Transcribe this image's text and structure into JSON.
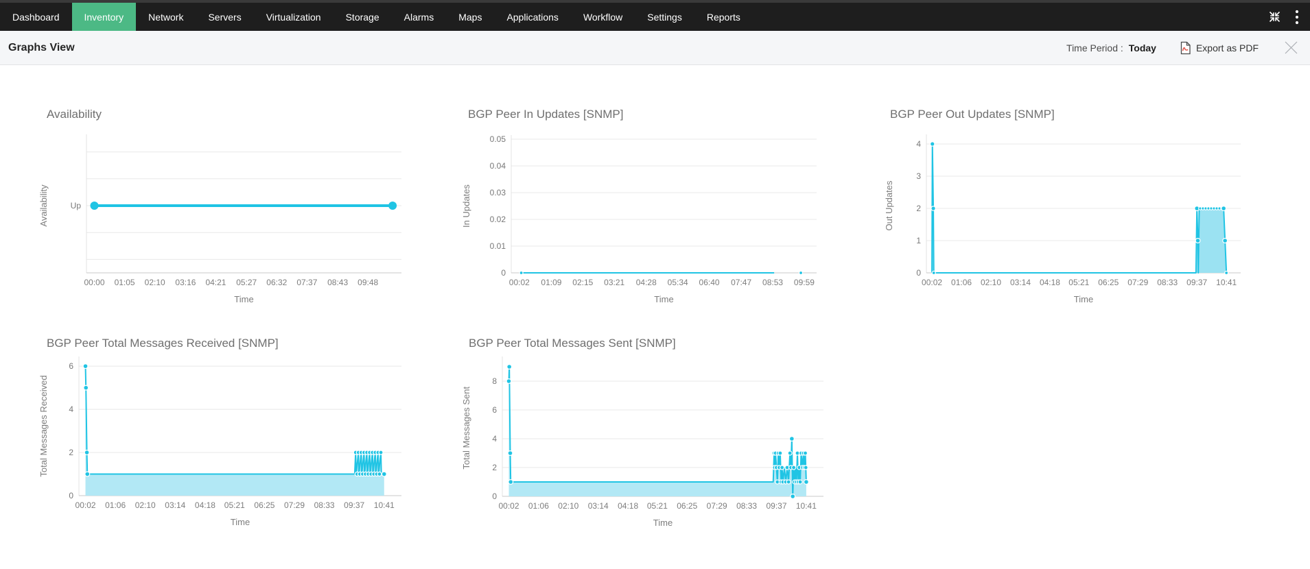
{
  "navbar": {
    "tabs": [
      {
        "label": "Dashboard",
        "active": false
      },
      {
        "label": "Inventory",
        "active": true
      },
      {
        "label": "Network",
        "active": false
      },
      {
        "label": "Servers",
        "active": false
      },
      {
        "label": "Virtualization",
        "active": false
      },
      {
        "label": "Storage",
        "active": false
      },
      {
        "label": "Alarms",
        "active": false
      },
      {
        "label": "Maps",
        "active": false
      },
      {
        "label": "Applications",
        "active": false
      },
      {
        "label": "Workflow",
        "active": false
      },
      {
        "label": "Settings",
        "active": false
      },
      {
        "label": "Reports",
        "active": false
      }
    ],
    "icons": [
      {
        "name": "collapse-icon"
      },
      {
        "name": "more-menu-icon"
      }
    ]
  },
  "header": {
    "title": "Graphs View",
    "time_period_label": "Time Period :",
    "time_period_value": "Today",
    "export_label": "Export as PDF",
    "icons": [
      {
        "name": "pdf-icon"
      },
      {
        "name": "close-icon"
      }
    ]
  },
  "colors": {
    "nav_bg": "#1e1e1e",
    "accent_green": "#4cb985",
    "line_cyan": "#20c4e4",
    "area_fill": "#b2e8f5",
    "area_fill_dense": "#9be2f2",
    "grid": "#e8e8e8",
    "axis_zero": "#c8c8c8",
    "axis_left": "#e3e3e3",
    "tick_text": "#7d7d7d",
    "pdf_red": "#e2574c"
  },
  "chart_data": [
    {
      "type": "line",
      "title": "Availability",
      "xlabel": "Time",
      "ylabel": "Availability",
      "ylim": [
        0,
        2
      ],
      "xlim_minutes": [
        -17,
        660
      ],
      "x_ticks": [
        "00:00",
        "01:05",
        "02:10",
        "03:16",
        "04:21",
        "05:27",
        "06:32",
        "07:37",
        "08:43",
        "09:48"
      ],
      "y_ticks": [
        {
          "label": "Up",
          "value": 1
        }
      ],
      "grid_values": [
        0.2,
        0.6,
        1.0,
        1.4,
        1.8
      ],
      "series": [
        {
          "name": "Availability",
          "area": false,
          "points": [
            [
              "00:00",
              1
            ],
            [
              "10:41",
              1
            ]
          ]
        }
      ],
      "markers": [
        [
          "00:00",
          1,
          6
        ],
        [
          "10:41",
          1,
          6
        ]
      ]
    },
    {
      "type": "line",
      "title": "BGP Peer In Updates [SNMP]",
      "xlabel": "Time",
      "ylabel": "In Updates",
      "ylim": [
        0,
        0.05
      ],
      "xlim_minutes": [
        -15,
        625
      ],
      "x_ticks": [
        "00:02",
        "01:09",
        "02:15",
        "03:21",
        "04:28",
        "05:34",
        "06:40",
        "07:47",
        "08:53",
        "09:59"
      ],
      "y_ticks": [
        {
          "label": "0.05",
          "value": 0.05
        },
        {
          "label": "0.04",
          "value": 0.04
        },
        {
          "label": "0.03",
          "value": 0.03
        },
        {
          "label": "0.02",
          "value": 0.02
        },
        {
          "label": "0.01",
          "value": 0.01
        },
        {
          "label": "0",
          "value": 0
        }
      ],
      "grid_values": [
        0.05,
        0.04,
        0.03,
        0.02,
        0.01
      ],
      "series": [
        {
          "name": "In Updates",
          "area": false,
          "points": [
            [
              "00:02",
              0
            ],
            [
              "08:56",
              0
            ]
          ]
        }
      ],
      "markers": [
        [
          "00:06",
          0,
          2.5
        ],
        [
          "09:52",
          0,
          2.5
        ]
      ]
    },
    {
      "type": "area",
      "title": "BGP Peer Out Updates [SNMP]",
      "xlabel": "Time",
      "ylabel": "Out Updates",
      "ylim": [
        0,
        4.17
      ],
      "xlim_minutes": [
        -10,
        672
      ],
      "x_ticks": [
        "00:02",
        "01:06",
        "02:10",
        "03:14",
        "04:18",
        "05:21",
        "06:25",
        "07:29",
        "08:33",
        "09:37",
        "10:41"
      ],
      "y_ticks": [
        {
          "label": "4",
          "value": 4
        },
        {
          "label": "3",
          "value": 3
        },
        {
          "label": "2",
          "value": 2
        },
        {
          "label": "1",
          "value": 1
        },
        {
          "label": "0",
          "value": 0
        }
      ],
      "grid_values": [
        4,
        3,
        2,
        1
      ],
      "series": [
        {
          "name": "Out Updates",
          "area": true,
          "points": [
            [
              "00:02",
              0
            ],
            [
              "00:03",
              4
            ],
            [
              "00:05",
              2
            ],
            [
              "00:06",
              0
            ],
            [
              "09:35",
              0
            ],
            [
              "09:37",
              2
            ],
            [
              "09:39",
              1
            ],
            [
              "09:40",
              0
            ],
            [
              "09:42",
              2
            ],
            [
              "10:35",
              2
            ],
            [
              "10:38",
              1
            ],
            [
              "10:41",
              0
            ]
          ]
        }
      ],
      "markers": [
        [
          "00:02",
          4,
          2.5
        ],
        [
          "00:03",
          4,
          3.2
        ],
        [
          "00:05",
          2,
          3.2
        ],
        [
          "00:06",
          0,
          2.5
        ],
        [
          "09:37",
          2,
          3.4
        ],
        [
          "09:39",
          1,
          3.4
        ],
        [
          "09:44",
          2,
          2.2
        ],
        [
          "09:50",
          2,
          2.2
        ],
        [
          "09:56",
          2,
          2.2
        ],
        [
          "10:02",
          2,
          2.2
        ],
        [
          "10:08",
          2,
          2.2
        ],
        [
          "10:14",
          2,
          2.2
        ],
        [
          "10:20",
          2,
          2.2
        ],
        [
          "10:26",
          2,
          2.2
        ],
        [
          "10:32",
          2,
          2.2
        ],
        [
          "10:35",
          2,
          3.4
        ],
        [
          "10:38",
          1,
          3.4
        ],
        [
          "10:41",
          0,
          2.5
        ]
      ]
    },
    {
      "type": "area",
      "title": "BGP Peer Total Messages Received [SNMP]",
      "xlabel": "Time",
      "ylabel": "Total Messages Received",
      "ylim": [
        0,
        6.45
      ],
      "xlim_minutes": [
        -12,
        678
      ],
      "x_ticks": [
        "00:02",
        "01:06",
        "02:10",
        "03:14",
        "04:18",
        "05:21",
        "06:25",
        "07:29",
        "08:33",
        "09:37",
        "10:41"
      ],
      "y_ticks": [
        {
          "label": "6",
          "value": 6
        },
        {
          "label": "4",
          "value": 4
        },
        {
          "label": "2",
          "value": 2
        },
        {
          "label": "0",
          "value": 0
        }
      ],
      "grid_values": [
        6,
        4,
        2
      ],
      "series": [
        {
          "name": "Total Messages Received",
          "area": true,
          "points": [
            [
              "00:02",
              6
            ],
            [
              "00:03",
              5
            ],
            [
              "00:05",
              2
            ],
            [
              "00:06",
              1
            ],
            [
              "09:38",
              1
            ],
            [
              "09:40",
              2
            ],
            [
              "09:41",
              1
            ],
            [
              "09:46",
              2
            ],
            [
              "09:47",
              1
            ],
            [
              "09:52",
              2
            ],
            [
              "09:53",
              1
            ],
            [
              "09:58",
              2
            ],
            [
              "09:59",
              1
            ],
            [
              "10:04",
              2
            ],
            [
              "10:05",
              1
            ],
            [
              "10:10",
              2
            ],
            [
              "10:11",
              1
            ],
            [
              "10:16",
              2
            ],
            [
              "10:17",
              1
            ],
            [
              "10:22",
              2
            ],
            [
              "10:23",
              1
            ],
            [
              "10:28",
              2
            ],
            [
              "10:29",
              1
            ],
            [
              "10:34",
              2
            ],
            [
              "10:35",
              1
            ],
            [
              "10:41",
              1
            ]
          ]
        }
      ],
      "markers": [
        [
          "00:02",
          6,
          3.4
        ],
        [
          "00:03",
          5,
          3.4
        ],
        [
          "00:05",
          2,
          3.4
        ],
        [
          "00:06",
          1,
          3.4
        ],
        [
          "09:40",
          2,
          3
        ],
        [
          "09:46",
          2,
          3
        ],
        [
          "09:52",
          2,
          3
        ],
        [
          "09:58",
          2,
          3
        ],
        [
          "10:04",
          2,
          3
        ],
        [
          "10:10",
          2,
          3
        ],
        [
          "10:16",
          2,
          3
        ],
        [
          "10:22",
          2,
          3
        ],
        [
          "10:28",
          2,
          3
        ],
        [
          "10:34",
          2,
          3
        ],
        [
          "09:43",
          1,
          3
        ],
        [
          "09:49",
          1,
          3
        ],
        [
          "09:55",
          1,
          3
        ],
        [
          "10:01",
          1,
          3
        ],
        [
          "10:07",
          1,
          3
        ],
        [
          "10:13",
          1,
          3
        ],
        [
          "10:19",
          1,
          3
        ],
        [
          "10:25",
          1,
          3
        ],
        [
          "10:31",
          1,
          3
        ],
        [
          "10:41",
          1,
          3.4
        ]
      ]
    },
    {
      "type": "area",
      "title": "BGP Peer Total Messages Sent [SNMP]",
      "xlabel": "Time",
      "ylabel": "Total Messages Sent",
      "ylim": [
        0,
        9.5
      ],
      "xlim_minutes": [
        -12,
        678
      ],
      "x_ticks": [
        "00:02",
        "01:06",
        "02:10",
        "03:14",
        "04:18",
        "05:21",
        "06:25",
        "07:29",
        "08:33",
        "09:37",
        "10:41"
      ],
      "y_ticks": [
        {
          "label": "8",
          "value": 8
        },
        {
          "label": "6",
          "value": 6
        },
        {
          "label": "4",
          "value": 4
        },
        {
          "label": "2",
          "value": 2
        },
        {
          "label": "0",
          "value": 0
        }
      ],
      "grid_values": [
        8,
        6,
        4,
        2
      ],
      "series": [
        {
          "name": "Total Messages Sent",
          "area": true,
          "points": [
            [
              "00:02",
              8
            ],
            [
              "00:03",
              9
            ],
            [
              "00:05",
              3
            ],
            [
              "00:06",
              1
            ],
            [
              "09:30",
              1
            ],
            [
              "09:32",
              3
            ],
            [
              "09:33",
              2
            ],
            [
              "09:35",
              3
            ],
            [
              "09:37",
              2
            ],
            [
              "09:39",
              1
            ],
            [
              "09:41",
              3
            ],
            [
              "09:43",
              2
            ],
            [
              "09:45",
              3
            ],
            [
              "09:47",
              1
            ],
            [
              "09:49",
              2
            ],
            [
              "09:51",
              1
            ],
            [
              "09:54",
              2
            ],
            [
              "09:57",
              1
            ],
            [
              "10:00",
              2
            ],
            [
              "10:03",
              1
            ],
            [
              "10:06",
              3
            ],
            [
              "10:08",
              2
            ],
            [
              "10:10",
              4
            ],
            [
              "10:12",
              0
            ],
            [
              "10:14",
              2
            ],
            [
              "10:16",
              1
            ],
            [
              "10:18",
              2
            ],
            [
              "10:20",
              1
            ],
            [
              "10:22",
              3
            ],
            [
              "10:24",
              1
            ],
            [
              "10:26",
              2
            ],
            [
              "10:28",
              1
            ],
            [
              "10:30",
              3
            ],
            [
              "10:33",
              2
            ],
            [
              "10:35",
              3
            ],
            [
              "10:37",
              2
            ],
            [
              "10:39",
              3
            ],
            [
              "10:40",
              2
            ],
            [
              "10:41",
              1
            ]
          ]
        }
      ],
      "markers": [
        [
          "00:02",
          8,
          3.4
        ],
        [
          "00:03",
          9,
          3.4
        ],
        [
          "00:05",
          3,
          3.4
        ],
        [
          "00:06",
          1,
          3.4
        ],
        [
          "09:32",
          3,
          3
        ],
        [
          "09:35",
          3,
          3
        ],
        [
          "09:41",
          3,
          3
        ],
        [
          "09:45",
          3,
          3
        ],
        [
          "10:06",
          3,
          3
        ],
        [
          "10:22",
          3,
          3
        ],
        [
          "10:30",
          3,
          3
        ],
        [
          "10:35",
          3,
          3
        ],
        [
          "10:39",
          3,
          3
        ],
        [
          "09:33",
          2,
          3
        ],
        [
          "09:37",
          2,
          3
        ],
        [
          "09:43",
          2,
          3
        ],
        [
          "09:49",
          2,
          3
        ],
        [
          "10:00",
          2,
          3
        ],
        [
          "10:08",
          2,
          3
        ],
        [
          "10:14",
          2,
          3
        ],
        [
          "10:26",
          2,
          3
        ],
        [
          "10:33",
          2,
          3
        ],
        [
          "10:37",
          2,
          3
        ],
        [
          "10:40",
          2,
          3
        ],
        [
          "09:39",
          1,
          3
        ],
        [
          "09:47",
          1,
          3
        ],
        [
          "09:51",
          1,
          3
        ],
        [
          "09:57",
          1,
          3
        ],
        [
          "10:03",
          1,
          3
        ],
        [
          "10:16",
          1,
          3
        ],
        [
          "10:20",
          1,
          3
        ],
        [
          "10:24",
          1,
          3
        ],
        [
          "10:28",
          1,
          3
        ],
        [
          "10:10",
          4,
          3.4
        ],
        [
          "10:12",
          0,
          3.4
        ],
        [
          "10:41",
          1,
          3.4
        ]
      ]
    }
  ]
}
